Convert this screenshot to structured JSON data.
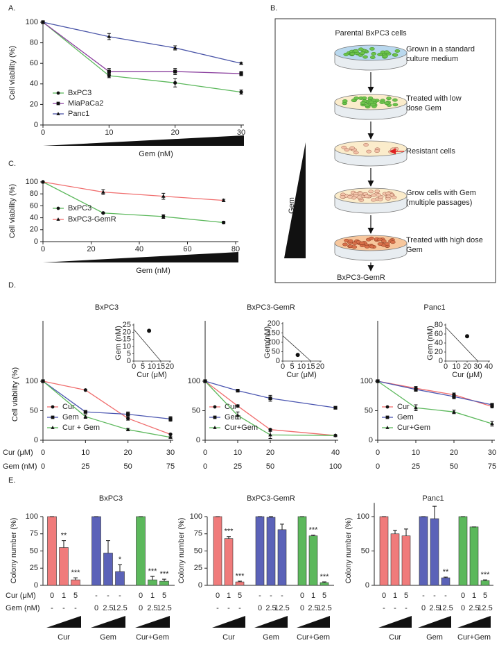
{
  "chart_data": [
    {
      "type": "line",
      "panel_label": "A.",
      "xlabel": "Gem (nM)",
      "ylabel": "Cell viability (%)",
      "x": [
        0,
        10,
        20,
        30
      ],
      "xlim": [
        0,
        30
      ],
      "xticks": [
        0,
        10,
        20,
        30
      ],
      "ylim": [
        0,
        100
      ],
      "yticks": [
        0,
        20,
        40,
        60,
        80,
        100
      ],
      "legend": "lower left",
      "series": [
        {
          "name": "BxPC3",
          "color": "#5cb85c",
          "marker": "circle",
          "values": [
            100,
            48,
            41,
            32
          ],
          "errors": [
            0,
            2,
            4,
            2
          ]
        },
        {
          "name": "MiaPaCa2",
          "color": "#8a3f9e",
          "marker": "square",
          "values": [
            100,
            52,
            52,
            50
          ],
          "errors": [
            0,
            3,
            3,
            2
          ]
        },
        {
          "name": "Panc1",
          "color": "#4a55a8",
          "marker": "triangle",
          "values": [
            100,
            86,
            75,
            60
          ],
          "errors": [
            0,
            3,
            2,
            1
          ]
        }
      ]
    },
    {
      "type": "line",
      "panel_label": "C.",
      "xlabel": "Gem (nM)",
      "ylabel": "Cell viability (%)",
      "x": [
        0,
        25,
        50,
        75
      ],
      "xlim": [
        0,
        80
      ],
      "xticks": [
        0,
        20,
        40,
        60,
        80
      ],
      "ylim": [
        0,
        100
      ],
      "yticks": [
        0,
        20,
        40,
        60,
        80,
        100
      ],
      "legend": "lower left",
      "series": [
        {
          "name": "BxPC3",
          "color": "#5cb85c",
          "marker": "circle",
          "values": [
            100,
            48,
            42,
            32
          ],
          "errors": [
            0,
            1,
            3,
            2
          ]
        },
        {
          "name": "BxPC3-GemR",
          "color": "#f06e6e",
          "marker": "triangle",
          "values": [
            100,
            83,
            76,
            69
          ],
          "errors": [
            0,
            4,
            5,
            2
          ]
        }
      ]
    },
    {
      "type": "line",
      "panel_label": "D.",
      "title": "BxPC3",
      "ylabel": "Cell viability (%)",
      "xlabel": "Cur (μM)",
      "x2label": "Gem (nM)",
      "x": [
        0,
        10,
        20,
        30
      ],
      "xlim": [
        0,
        30
      ],
      "xticks": [
        0,
        10,
        20,
        30
      ],
      "x2ticks": [
        0,
        25,
        50,
        75
      ],
      "ylim": [
        0,
        100
      ],
      "yticks": [
        0,
        50,
        100
      ],
      "legend": "lower left",
      "series": [
        {
          "name": "Cur",
          "color": "#f06e6e",
          "marker": "circle",
          "values": [
            100,
            85,
            37,
            10
          ],
          "errors": [
            0,
            0,
            3,
            1
          ]
        },
        {
          "name": "Gem",
          "color": "#4a55b0",
          "marker": "square",
          "values": [
            100,
            48,
            44,
            36
          ],
          "errors": [
            0,
            2,
            4,
            4
          ]
        },
        {
          "name": "Cur + Gem",
          "color": "#5cb85c",
          "marker": "triangle",
          "values": [
            100,
            40,
            18,
            5
          ],
          "errors": [
            0,
            3,
            2,
            1
          ]
        }
      ],
      "inset": {
        "xlabel": "Cur (μM)",
        "ylabel": "Gem (nM)",
        "xlim": [
          0,
          20
        ],
        "ylim": [
          0,
          25
        ],
        "xticks": [
          0,
          5,
          10,
          15,
          20
        ],
        "yticks": [
          0,
          5,
          10,
          15,
          20,
          25
        ],
        "line": {
          "x": [
            0,
            15
          ],
          "y": [
            22,
            0
          ]
        },
        "point": {
          "x": [
            8.5
          ],
          "y": [
            21
          ]
        }
      }
    },
    {
      "type": "line",
      "title": "BxPC3-GemR",
      "x": [
        0,
        10,
        20,
        40
      ],
      "xlim": [
        0,
        40
      ],
      "xticks": [
        0,
        10,
        20,
        40
      ],
      "x2ticks": [
        0,
        25,
        50,
        100
      ],
      "ylim": [
        0,
        100
      ],
      "yticks": [
        0,
        50,
        100
      ],
      "legend": "lower left",
      "series": [
        {
          "name": "Cur",
          "color": "#f06e6e",
          "marker": "circle",
          "values": [
            100,
            58,
            18,
            8
          ],
          "errors": [
            0,
            2,
            1,
            1
          ]
        },
        {
          "name": "Gem",
          "color": "#4a55b0",
          "marker": "square",
          "values": [
            100,
            84,
            71,
            55
          ],
          "errors": [
            0,
            1,
            5,
            1
          ]
        },
        {
          "name": "Cur+Gem",
          "color": "#5cb85c",
          "marker": "triangle",
          "values": [
            100,
            42,
            9,
            8
          ],
          "errors": [
            0,
            6,
            6,
            1
          ]
        }
      ],
      "inset": {
        "xlabel": "Cur (μM)",
        "ylabel": "Gem(nM)",
        "xlim": [
          0,
          20
        ],
        "ylim": [
          0,
          200
        ],
        "xticks": [
          0,
          5,
          10,
          15,
          20
        ],
        "yticks": [
          0,
          50,
          100,
          150,
          200
        ],
        "line": {
          "x": [
            0,
            15
          ],
          "y": [
            135,
            0
          ]
        },
        "point": {
          "x": [
            8
          ],
          "y": [
            33
          ]
        }
      }
    },
    {
      "type": "line",
      "title": "Panc1",
      "x": [
        0,
        10,
        20,
        30
      ],
      "xlim": [
        0,
        30
      ],
      "xticks": [
        0,
        10,
        20,
        30
      ],
      "x2ticks": [
        0,
        25,
        50,
        75
      ],
      "ylim": [
        0,
        100
      ],
      "yticks": [
        0,
        50,
        100
      ],
      "legend": "lower left",
      "series": [
        {
          "name": "Cur",
          "color": "#f06e6e",
          "marker": "circle",
          "values": [
            100,
            88,
            77,
            57
          ],
          "errors": [
            0,
            3,
            3,
            2
          ]
        },
        {
          "name": "Gem",
          "color": "#4a55b0",
          "marker": "square",
          "values": [
            100,
            86,
            74,
            60
          ],
          "errors": [
            0,
            3,
            4,
            2
          ]
        },
        {
          "name": "Cur+Gem",
          "color": "#5cb85c",
          "marker": "triangle",
          "values": [
            100,
            55,
            48,
            28
          ],
          "errors": [
            0,
            5,
            3,
            4
          ]
        }
      ],
      "inset": {
        "xlabel": "Cur (μM)",
        "ylabel": "Gem (nM)",
        "xlim": [
          0,
          40
        ],
        "ylim": [
          0,
          80
        ],
        "xticks": [
          0,
          10,
          20,
          30,
          40
        ],
        "yticks": [
          0,
          20,
          40,
          60,
          80
        ],
        "line": {
          "x": [
            0,
            30
          ],
          "y": [
            75,
            0
          ]
        },
        "point": {
          "x": [
            20
          ],
          "y": [
            55
          ]
        }
      }
    },
    {
      "type": "bar",
      "panel_label": "E.",
      "title": "BxPC3",
      "ylabel": "Colony number (%)",
      "ylim": [
        0,
        100
      ],
      "yticks": [
        0,
        25,
        50,
        75,
        100
      ],
      "groups": [
        "Cur",
        "Gem",
        "Cur+Gem"
      ],
      "colors": [
        "#f07b7b",
        "#5b62b8",
        "#5cb85c"
      ],
      "values": [
        100,
        55,
        8,
        100,
        47,
        20,
        100,
        8,
        6
      ],
      "errors": [
        0,
        10,
        3,
        0,
        18,
        10,
        0,
        5,
        3
      ],
      "significance": [
        null,
        "**",
        "***",
        null,
        null,
        "*",
        null,
        "***",
        "***"
      ],
      "rows": [
        {
          "label": "Cur (μM)",
          "values": [
            "0",
            "1",
            "5",
            "-",
            "-",
            "-",
            "0",
            "1",
            "5"
          ]
        },
        {
          "label": "Gem (nM)",
          "values": [
            "-",
            "-",
            "-",
            "0",
            "2.5",
            "12.5",
            "0",
            "2.5",
            "12.5"
          ]
        }
      ]
    },
    {
      "type": "bar",
      "title": "BxPC3-GemR",
      "ylabel": "Colony number (%)",
      "ylim": [
        0,
        100
      ],
      "yticks": [
        0,
        25,
        50,
        75,
        100
      ],
      "groups": [
        "Cur",
        "Gem",
        "Cur+Gem"
      ],
      "colors": [
        "#f07b7b",
        "#5b62b8",
        "#5cb85c"
      ],
      "values": [
        100,
        68,
        5,
        100,
        99,
        81,
        100,
        72,
        4
      ],
      "errors": [
        0,
        3,
        1,
        0,
        1,
        8,
        0,
        1,
        1
      ],
      "significance": [
        null,
        "***",
        "***",
        null,
        null,
        null,
        null,
        "***",
        "***"
      ],
      "rows": [
        {
          "values": [
            "0",
            "1",
            "5",
            "-",
            "-",
            "-",
            "0",
            "1",
            "5"
          ]
        },
        {
          "values": [
            "-",
            "-",
            "-",
            "0",
            "2.5",
            "12.5",
            "0",
            "2.5",
            "12.5"
          ]
        }
      ]
    },
    {
      "type": "bar",
      "title": "Panc1",
      "ylabel": "Colony number (%)",
      "ylim": [
        0,
        120
      ],
      "yticks": [
        0,
        50,
        100
      ],
      "groups": [
        "Cur",
        "Gem",
        "Cur+Gem"
      ],
      "colors": [
        "#f07b7b",
        "#5b62b8",
        "#5cb85c"
      ],
      "values": [
        100,
        75,
        72,
        100,
        97,
        11,
        100,
        85,
        7
      ],
      "errors": [
        0,
        5,
        10,
        0,
        18,
        1,
        0,
        0,
        1
      ],
      "significance": [
        null,
        null,
        null,
        null,
        null,
        "**",
        null,
        null,
        "***"
      ],
      "rows": [
        {
          "values": [
            "0",
            "1",
            "5",
            "-",
            "-",
            "-",
            "0",
            "1",
            "5"
          ]
        },
        {
          "values": [
            "-",
            "-",
            "-",
            "0",
            "2.5",
            "12.5",
            "0",
            "2.5",
            "12.5"
          ]
        }
      ]
    }
  ],
  "diagram": {
    "label": "B.",
    "top": "Parental BxPC3 cells",
    "steps": [
      [
        "Grown in a standard",
        "culture medium"
      ],
      [
        "Treated with low",
        "dose Gem"
      ],
      [
        "Resistant cells"
      ],
      [
        "Grow cells with Gem",
        "(multiple passages)"
      ],
      [
        "Treated with high dose",
        "Gem"
      ]
    ],
    "gradient": "Gem",
    "result": "BxPC3-GemR"
  }
}
